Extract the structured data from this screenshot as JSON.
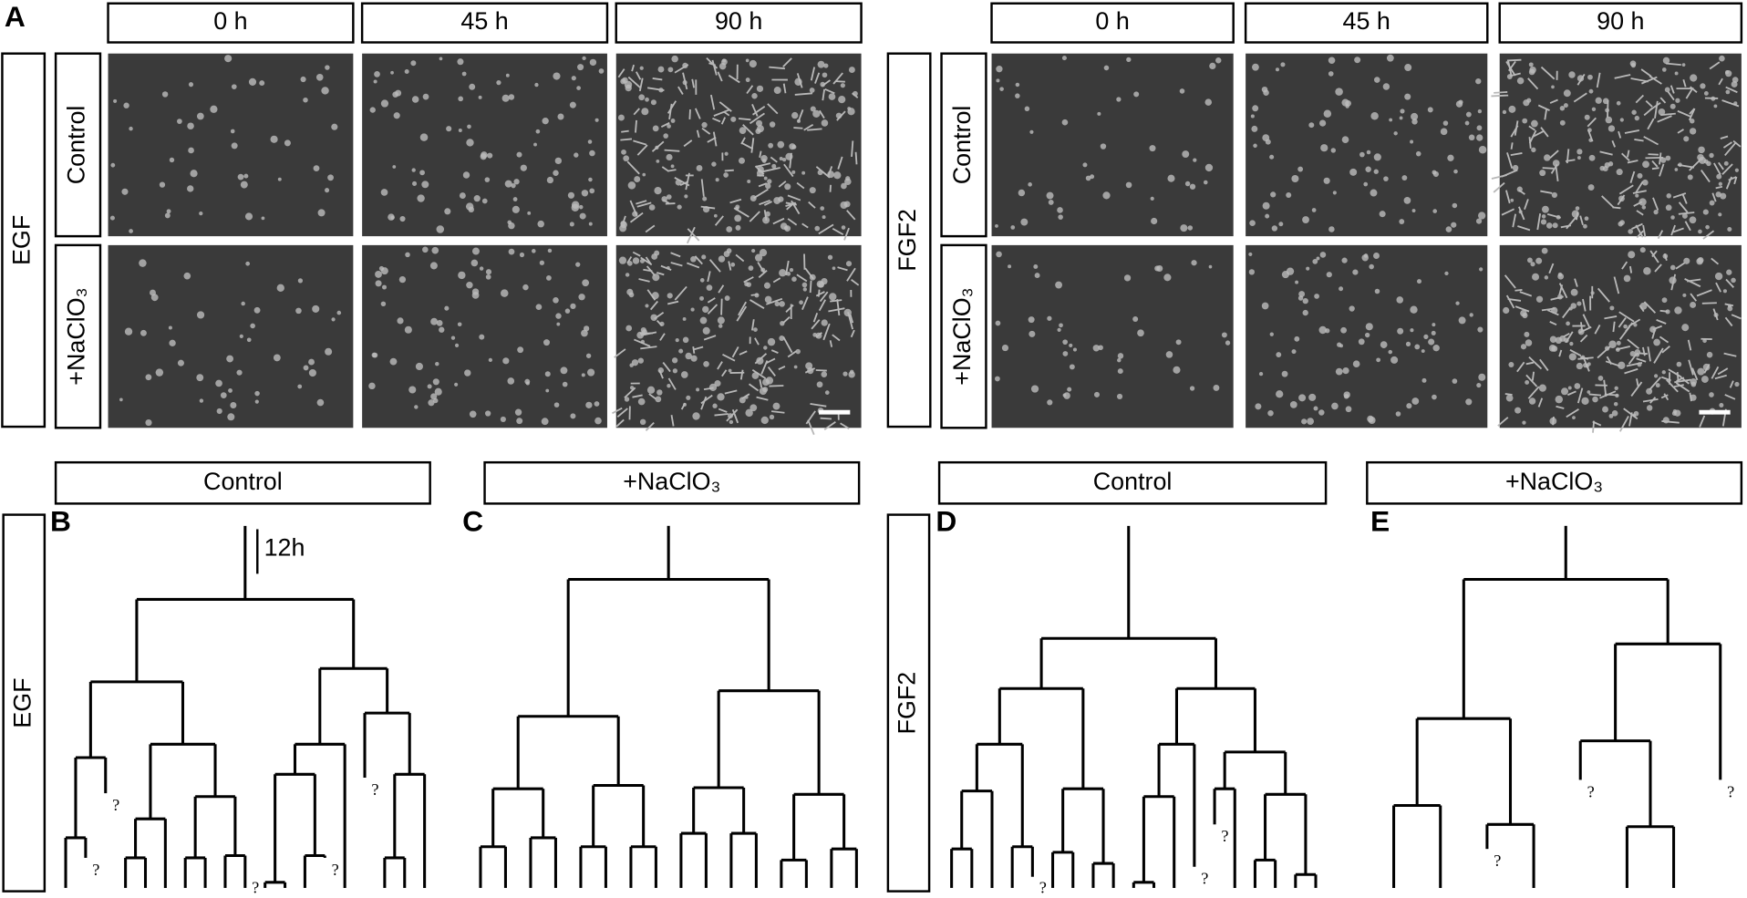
{
  "panel_a": {
    "label": "A",
    "groups": [
      {
        "name": "EGF",
        "times": [
          "0 h",
          "45 h",
          "90 h"
        ],
        "conditions": [
          "Control",
          "+NaClO₃"
        ]
      },
      {
        "name": "FGF2",
        "times": [
          "0 h",
          "45 h",
          "90 h"
        ],
        "conditions": [
          "Control",
          "+NaClO₃"
        ]
      }
    ]
  },
  "lineage_trees": {
    "groups": [
      {
        "name": "EGF",
        "panels": [
          {
            "label": "B",
            "condition": "Control"
          },
          {
            "label": "C",
            "condition": "+NaClO₃"
          }
        ]
      },
      {
        "name": "FGF2",
        "panels": [
          {
            "label": "D",
            "condition": "Control"
          },
          {
            "label": "E",
            "condition": "+NaClO₃"
          }
        ]
      }
    ],
    "scale_label": "12h",
    "unknown_marker": "?"
  }
}
